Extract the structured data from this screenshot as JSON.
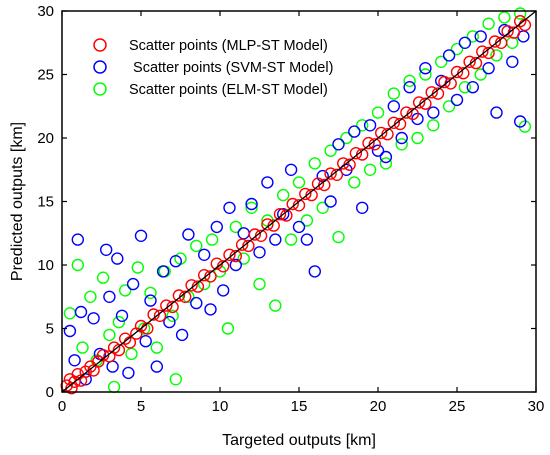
{
  "chart_data": {
    "type": "scatter",
    "title": "",
    "xlabel": "Targeted outputs [km]",
    "ylabel": "Predicted outputs [km]",
    "xlim": [
      0,
      30
    ],
    "ylim": [
      0,
      30
    ],
    "xticks": [
      "0",
      "5",
      "10",
      "15",
      "20",
      "25",
      "30"
    ],
    "yticks": [
      "0",
      "5",
      "10",
      "15",
      "20",
      "25",
      "30"
    ],
    "grid": false,
    "legend_position": "top-left",
    "reference_line": {
      "from": [
        0,
        0
      ],
      "to": [
        30,
        30
      ],
      "color": "#000000"
    },
    "series": [
      {
        "name": "Scatter points (MLP-ST Model)",
        "color": "#ff0000",
        "points": [
          [
            0.3,
            0.5
          ],
          [
            0.5,
            1.0
          ],
          [
            0.6,
            0.3
          ],
          [
            0.8,
            0.8
          ],
          [
            1.0,
            1.4
          ],
          [
            1.2,
            0.9
          ],
          [
            1.5,
            1.6
          ],
          [
            1.8,
            2.0
          ],
          [
            2.0,
            1.7
          ],
          [
            2.3,
            2.4
          ],
          [
            2.6,
            2.9
          ],
          [
            3.0,
            2.8
          ],
          [
            3.3,
            3.5
          ],
          [
            3.6,
            3.3
          ],
          [
            4.0,
            4.2
          ],
          [
            4.3,
            3.9
          ],
          [
            4.7,
            4.6
          ],
          [
            5.0,
            5.2
          ],
          [
            5.4,
            5.0
          ],
          [
            5.8,
            6.1
          ],
          [
            6.2,
            6.0
          ],
          [
            6.6,
            6.8
          ],
          [
            7.0,
            6.7
          ],
          [
            7.4,
            7.6
          ],
          [
            7.8,
            7.5
          ],
          [
            8.2,
            8.4
          ],
          [
            8.6,
            8.3
          ],
          [
            9.0,
            9.2
          ],
          [
            9.4,
            9.1
          ],
          [
            9.8,
            10.1
          ],
          [
            10.2,
            9.9
          ],
          [
            10.6,
            10.8
          ],
          [
            11.0,
            10.7
          ],
          [
            11.4,
            11.6
          ],
          [
            11.8,
            11.5
          ],
          [
            12.2,
            12.4
          ],
          [
            12.6,
            12.3
          ],
          [
            13.0,
            13.2
          ],
          [
            13.4,
            13.1
          ],
          [
            13.8,
            14.0
          ],
          [
            14.2,
            13.9
          ],
          [
            14.6,
            14.8
          ],
          [
            15.0,
            14.7
          ],
          [
            15.4,
            15.6
          ],
          [
            15.8,
            15.5
          ],
          [
            16.2,
            16.4
          ],
          [
            16.6,
            16.3
          ],
          [
            17.0,
            17.2
          ],
          [
            17.4,
            17.1
          ],
          [
            17.8,
            18.0
          ],
          [
            18.2,
            17.9
          ],
          [
            18.6,
            18.8
          ],
          [
            19.0,
            18.7
          ],
          [
            19.4,
            19.6
          ],
          [
            19.8,
            19.5
          ],
          [
            20.2,
            20.4
          ],
          [
            20.6,
            20.3
          ],
          [
            21.0,
            21.2
          ],
          [
            21.4,
            21.1
          ],
          [
            21.8,
            22.0
          ],
          [
            22.2,
            21.9
          ],
          [
            22.6,
            22.8
          ],
          [
            23.0,
            22.7
          ],
          [
            23.4,
            23.6
          ],
          [
            23.8,
            23.5
          ],
          [
            24.2,
            24.4
          ],
          [
            24.6,
            24.3
          ],
          [
            25.0,
            25.2
          ],
          [
            25.4,
            25.1
          ],
          [
            25.8,
            26.0
          ],
          [
            26.2,
            25.9
          ],
          [
            26.6,
            26.8
          ],
          [
            27.0,
            26.7
          ],
          [
            27.4,
            27.6
          ],
          [
            27.8,
            27.5
          ],
          [
            28.2,
            28.4
          ],
          [
            28.6,
            28.3
          ],
          [
            29.0,
            29.2
          ],
          [
            29.3,
            28.9
          ]
        ]
      },
      {
        "name": " Scatter points (SVM-ST Model)",
        "color": "#0000ff",
        "points": [
          [
            0.5,
            4.8
          ],
          [
            0.8,
            2.5
          ],
          [
            1.0,
            12.0
          ],
          [
            1.2,
            6.3
          ],
          [
            1.5,
            1.0
          ],
          [
            2.0,
            5.8
          ],
          [
            2.4,
            3.0
          ],
          [
            2.8,
            11.2
          ],
          [
            3.0,
            7.5
          ],
          [
            3.2,
            2.0
          ],
          [
            3.5,
            10.5
          ],
          [
            3.8,
            6.0
          ],
          [
            4.2,
            1.5
          ],
          [
            4.5,
            8.5
          ],
          [
            5.0,
            12.3
          ],
          [
            5.3,
            4.0
          ],
          [
            5.6,
            7.2
          ],
          [
            6.0,
            2.0
          ],
          [
            6.4,
            9.5
          ],
          [
            6.8,
            5.5
          ],
          [
            7.2,
            10.3
          ],
          [
            7.6,
            4.5
          ],
          [
            8.0,
            12.4
          ],
          [
            8.5,
            7.0
          ],
          [
            9.0,
            10.8
          ],
          [
            9.4,
            6.5
          ],
          [
            9.8,
            13.0
          ],
          [
            10.2,
            8.0
          ],
          [
            10.6,
            14.5
          ],
          [
            11.0,
            10.0
          ],
          [
            11.5,
            12.5
          ],
          [
            12.0,
            14.8
          ],
          [
            12.5,
            11.0
          ],
          [
            13.0,
            16.5
          ],
          [
            13.5,
            12.0
          ],
          [
            14.0,
            14.0
          ],
          [
            14.5,
            17.5
          ],
          [
            15.0,
            13.0
          ],
          [
            15.5,
            12.0
          ],
          [
            16.0,
            9.5
          ],
          [
            16.5,
            17.0
          ],
          [
            17.0,
            15.0
          ],
          [
            17.5,
            19.5
          ],
          [
            18.0,
            17.5
          ],
          [
            18.5,
            20.5
          ],
          [
            19.0,
            14.5
          ],
          [
            19.5,
            21.0
          ],
          [
            20.0,
            19.0
          ],
          [
            20.5,
            18.5
          ],
          [
            21.0,
            22.5
          ],
          [
            21.5,
            20.0
          ],
          [
            22.0,
            24.0
          ],
          [
            22.5,
            21.5
          ],
          [
            23.0,
            25.5
          ],
          [
            23.5,
            22.0
          ],
          [
            24.0,
            24.5
          ],
          [
            24.5,
            26.5
          ],
          [
            25.0,
            23.0
          ],
          [
            25.5,
            27.5
          ],
          [
            26.0,
            24.0
          ],
          [
            26.5,
            28.0
          ],
          [
            27.0,
            25.5
          ],
          [
            27.5,
            22.0
          ],
          [
            28.0,
            28.5
          ],
          [
            28.5,
            26.0
          ],
          [
            29.0,
            21.3
          ],
          [
            29.2,
            28.0
          ]
        ]
      },
      {
        "name": "Scatter points (ELM-ST Model)",
        "color": "#00ff00",
        "points": [
          [
            0.5,
            6.2
          ],
          [
            1.0,
            10.0
          ],
          [
            1.3,
            3.5
          ],
          [
            1.8,
            7.5
          ],
          [
            2.2,
            2.5
          ],
          [
            2.6,
            9.0
          ],
          [
            3.0,
            4.5
          ],
          [
            3.3,
            0.4
          ],
          [
            3.6,
            5.5
          ],
          [
            4.0,
            8.0
          ],
          [
            4.4,
            3.0
          ],
          [
            4.8,
            9.8
          ],
          [
            5.2,
            5.0
          ],
          [
            5.6,
            7.8
          ],
          [
            6.0,
            3.5
          ],
          [
            6.5,
            9.5
          ],
          [
            7.0,
            6.0
          ],
          [
            7.2,
            1.0
          ],
          [
            7.5,
            10.5
          ],
          [
            8.0,
            7.5
          ],
          [
            8.5,
            11.5
          ],
          [
            9.0,
            8.5
          ],
          [
            9.5,
            12.0
          ],
          [
            10.0,
            9.5
          ],
          [
            10.5,
            5.0
          ],
          [
            11.0,
            13.0
          ],
          [
            11.5,
            10.5
          ],
          [
            12.0,
            14.5
          ],
          [
            12.5,
            8.5
          ],
          [
            13.0,
            13.5
          ],
          [
            13.5,
            6.8
          ],
          [
            14.0,
            15.5
          ],
          [
            14.5,
            12.0
          ],
          [
            15.0,
            16.5
          ],
          [
            15.5,
            13.5
          ],
          [
            16.0,
            18.0
          ],
          [
            16.5,
            14.5
          ],
          [
            17.0,
            19.0
          ],
          [
            17.5,
            12.2
          ],
          [
            18.0,
            20.0
          ],
          [
            18.5,
            16.5
          ],
          [
            19.0,
            21.0
          ],
          [
            19.5,
            17.5
          ],
          [
            20.0,
            22.0
          ],
          [
            20.5,
            18.0
          ],
          [
            21.0,
            23.5
          ],
          [
            21.5,
            19.5
          ],
          [
            22.0,
            24.5
          ],
          [
            22.5,
            20.0
          ],
          [
            23.0,
            25.0
          ],
          [
            23.5,
            21.0
          ],
          [
            24.0,
            26.0
          ],
          [
            24.5,
            22.5
          ],
          [
            25.0,
            27.0
          ],
          [
            25.5,
            24.0
          ],
          [
            26.0,
            28.0
          ],
          [
            26.5,
            25.0
          ],
          [
            27.0,
            29.0
          ],
          [
            27.5,
            26.5
          ],
          [
            28.0,
            29.5
          ],
          [
            28.5,
            27.5
          ],
          [
            29.0,
            29.8
          ],
          [
            29.3,
            20.9
          ]
        ]
      }
    ]
  }
}
